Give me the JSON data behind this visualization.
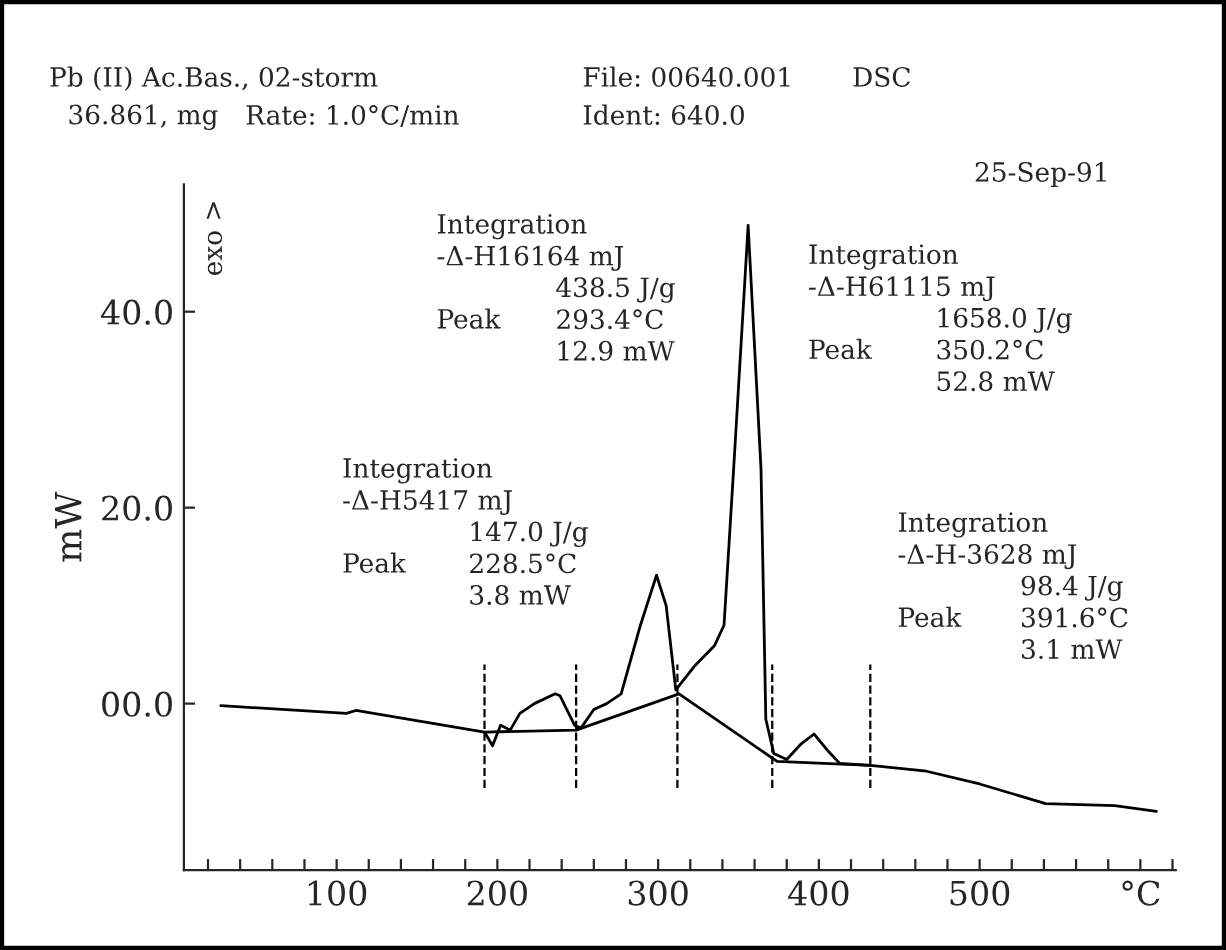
{
  "chart_data": {
    "type": "line",
    "ylabel": "mW",
    "xlim": [
      5,
      622
    ],
    "ylim": [
      -17,
      53
    ],
    "xticks": [
      {
        "value": 20,
        "label": null
      },
      {
        "value": 40,
        "label": null
      },
      {
        "value": 60,
        "label": null
      },
      {
        "value": 80,
        "label": null
      },
      100,
      {
        "value": 120,
        "label": null
      },
      {
        "value": 140,
        "label": null
      },
      {
        "value": 160,
        "label": null
      },
      {
        "value": 180,
        "label": null
      },
      200,
      {
        "value": 220,
        "label": null
      },
      {
        "value": 240,
        "label": null
      },
      {
        "value": 260,
        "label": null
      },
      {
        "value": 280,
        "label": null
      },
      300,
      {
        "value": 320,
        "label": null
      },
      {
        "value": 340,
        "label": null
      },
      {
        "value": 360,
        "label": null
      },
      {
        "value": 380,
        "label": null
      },
      400,
      {
        "value": 420,
        "label": null
      },
      {
        "value": 440,
        "label": null
      },
      {
        "value": 460,
        "label": null
      },
      {
        "value": 480,
        "label": null
      },
      500,
      {
        "value": 520,
        "label": null
      },
      {
        "value": 540,
        "label": null
      },
      {
        "value": 560,
        "label": null
      },
      {
        "value": 580,
        "label": null
      },
      {
        "value": 600,
        "label": "°C"
      },
      {
        "value": 620,
        "label": null
      }
    ],
    "yticks": [
      {
        "value": 0,
        "label": "00.0"
      },
      {
        "value": 20,
        "label": "20.0"
      },
      {
        "value": 40,
        "label": "40.0"
      }
    ],
    "series": [
      {
        "color": "#000000",
        "x": [
          28,
          106,
          112,
          192,
          197,
          202,
          208,
          214,
          223,
          236,
          239,
          248,
          252,
          260,
          268,
          277,
          289,
          299,
          305,
          311,
          323,
          335,
          341,
          347,
          356,
          364,
          367,
          372,
          380,
          389,
          397,
          405,
          413,
          432,
          467,
          500,
          541,
          584,
          610
        ],
        "values": [
          -0.2,
          -1.0,
          -0.7,
          -2.9,
          -4.3,
          -2.2,
          -2.7,
          -1.0,
          0,
          1.0,
          0.8,
          -2.2,
          -2.5,
          -0.6,
          0,
          1.0,
          8,
          13.1,
          10,
          1.4,
          3.9,
          5.9,
          8,
          24,
          48.8,
          24,
          -1.6,
          -5.1,
          -5.7,
          -4.1,
          -3.1,
          -4.7,
          -6.1,
          -6.3,
          -6.9,
          -8.2,
          -10.2,
          -10.4,
          -11.0
        ]
      },
      {
        "color": "#000000",
        "x": [
          192,
          249,
          313,
          374,
          432
        ],
        "values": [
          -2.9,
          -2.7,
          1.0,
          -5.9,
          -6.3
        ]
      }
    ],
    "ref_lines": [
      {
        "axis": "x",
        "value": 192,
        "line_style": "dashed",
        "color": "#000000"
      },
      {
        "axis": "x",
        "value": 249,
        "line_style": "dashed",
        "color": "#000000"
      },
      {
        "axis": "x",
        "value": 312,
        "line_style": "dashed",
        "color": "#000000"
      },
      {
        "axis": "x",
        "value": 371,
        "line_style": "dashed",
        "color": "#000000"
      },
      {
        "axis": "x",
        "value": 432,
        "line_style": "dashed",
        "color": "#000000"
      }
    ],
    "annotations": [
      "Pb (II) Ac.Bas., 02-storm",
      "36.861, mg",
      "Rate: 1.0°C/min",
      "File: 00640.001",
      "Ident: 640.0",
      "DSC",
      "25-Sep-91",
      "exo >",
      "Integration\n-Δ-H16164 mJ\n\nPeak",
      "\n\n438.5 J/g\n293.4°C\n12.9 mW",
      "Integration\n-Δ-H61115 mJ\n\nPeak",
      "\n\n1658.0 J/g\n350.2°C\n52.8 mW",
      "Integration\n-Δ-H5417 mJ\n\nPeak",
      "\n\n147.0 J/g\n228.5°C\n3.8 mW",
      "Integration\n-Δ-H-3628 mJ\n\nPeak",
      "\n\n98.4 J/g\n391.6°C\n3.1 mW"
    ]
  }
}
